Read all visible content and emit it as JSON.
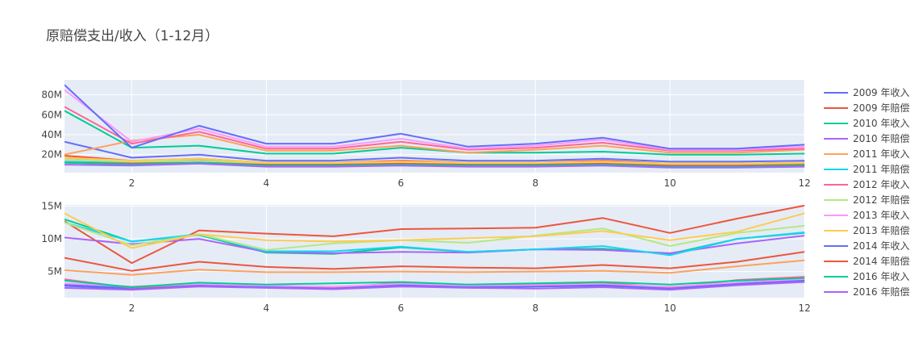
{
  "chart_data": {
    "type": "line",
    "title": "原赔偿支出/收入（1-12月）",
    "x": [
      1,
      2,
      3,
      4,
      5,
      6,
      7,
      8,
      9,
      10,
      11,
      12
    ],
    "x_ticks": [
      2,
      4,
      6,
      8,
      10,
      12
    ],
    "x_range": [
      1,
      12
    ],
    "subplots": [
      {
        "y_range": [
          2,
          95
        ],
        "y_ticks": [
          20,
          40,
          60,
          80
        ],
        "y_tick_labels": [
          "20M",
          "40M",
          "60M",
          "80M"
        ],
        "series": [
          {
            "name": "2009 年收入",
            "color": "#636efa",
            "values": [
              33,
              17,
              20,
              14,
              14,
              17,
              14,
              14,
              16,
              13,
              13,
              14
            ]
          },
          {
            "name": "2009 年赔偿",
            "color": "#EF553B",
            "values": [
              19,
              14,
              16,
              12,
              12,
              14,
              12,
              12,
              14,
              11,
              11,
              12
            ]
          },
          {
            "name": "2010 年收入",
            "color": "#00cc96",
            "values": [
              64,
              27,
              29,
              21,
              21,
              27,
              22,
              22,
              23,
              20,
              20,
              21
            ]
          },
          {
            "name": "2010 年赔偿",
            "color": "#ab63fa",
            "values": [
              17,
              13,
              15,
              11,
              11,
              12,
              11,
              11,
              12,
              10,
              10,
              11
            ]
          },
          {
            "name": "2011 年收入",
            "color": "#FFA15A",
            "values": [
              20,
              34,
              40,
              24,
              24,
              29,
              22,
              25,
              29,
              22,
              22,
              25
            ]
          },
          {
            "name": "2011 年赔偿",
            "color": "#19d3f3",
            "values": [
              13,
              12,
              14,
              10,
              10,
              11,
              10,
              10,
              11,
              9,
              9,
              10
            ]
          },
          {
            "name": "2012 年收入",
            "color": "#FF6692",
            "values": [
              68,
              31,
              43,
              26,
              26,
              33,
              25,
              27,
              32,
              24,
              24,
              26
            ]
          },
          {
            "name": "2012 年赔偿",
            "color": "#B6E880",
            "values": [
              15,
              13,
              14,
              11,
              11,
              12,
              11,
              11,
              12,
              10,
              10,
              11
            ]
          },
          {
            "name": "2013 年收入",
            "color": "#FF97FF",
            "values": [
              85,
              33,
              46,
              28,
              28,
              36,
              26,
              29,
              35,
              25,
              25,
              28
            ]
          },
          {
            "name": "2013 年赔偿",
            "color": "#FECB52",
            "values": [
              17,
              14,
              16,
              12,
              12,
              13,
              12,
              12,
              13,
              11,
              11,
              12
            ]
          },
          {
            "name": "2014 年收入",
            "color": "#636efa",
            "values": [
              90,
              27,
              49,
              31,
              31,
              41,
              28,
              31,
              37,
              26,
              26,
              30
            ]
          },
          {
            "name": "2014 年赔偿",
            "color": "#EF553B",
            "values": [
              12,
              11,
              12,
              10,
              10,
              11,
              10,
              10,
              11,
              9,
              9,
              10
            ]
          },
          {
            "name": "2016 年收入",
            "color": "#00cc96",
            "values": [
              12,
              10,
              12,
              9,
              9,
              10,
              9,
              9,
              10,
              8,
              8,
              9
            ]
          },
          {
            "name": "2016 年赔偿",
            "color": "#ab63fa",
            "values": [
              10,
              9,
              11,
              8,
              8,
              9,
              8,
              8,
              9,
              7,
              7,
              8
            ]
          }
        ]
      },
      {
        "y_range": [
          1,
          15.2
        ],
        "y_ticks": [
          5,
          10,
          15
        ],
        "y_tick_labels": [
          "5M",
          "10M",
          "15M"
        ],
        "series": [
          {
            "name": "2009 年收入",
            "color": "#636efa",
            "values": [
              3.0,
              2.5,
              2.9,
              2.6,
              2.5,
              2.9,
              2.6,
              2.7,
              2.8,
              2.5,
              3.3,
              3.9
            ]
          },
          {
            "name": "2009 年赔偿",
            "color": "#EF553B",
            "values": [
              12.7,
              6.3,
              11.3,
              10.8,
              10.4,
              11.5,
              11.6,
              11.7,
              13.2,
              10.9,
              13.1,
              15.1
            ]
          },
          {
            "name": "2010 年收入",
            "color": "#00cc96",
            "values": [
              13.0,
              9.6,
              10.6,
              7.9,
              7.7,
              8.7,
              8.0,
              8.4,
              8.5,
              7.7,
              10.0,
              10.9
            ]
          },
          {
            "name": "2010 年赔偿",
            "color": "#ab63fa",
            "values": [
              10.2,
              9.2,
              10.0,
              8.0,
              7.8,
              8.0,
              7.9,
              8.4,
              8.3,
              7.8,
              9.3,
              10.5
            ]
          },
          {
            "name": "2011 年收入",
            "color": "#FFA15A",
            "values": [
              5.2,
              4.5,
              5.3,
              4.9,
              4.9,
              5.0,
              4.9,
              5.0,
              5.1,
              4.8,
              5.8,
              6.7
            ]
          },
          {
            "name": "2011 年赔偿",
            "color": "#19d3f3",
            "values": [
              12.5,
              9.6,
              10.7,
              8.1,
              8.1,
              8.8,
              8.0,
              8.4,
              8.9,
              7.5,
              10.0,
              11.0
            ]
          },
          {
            "name": "2012 年收入",
            "color": "#FF6692",
            "values": [
              3.8,
              2.5,
              3.1,
              2.9,
              2.5,
              3.3,
              2.9,
              3.1,
              3.3,
              2.5,
              3.7,
              4.2
            ]
          },
          {
            "name": "2012 年赔偿",
            "color": "#B6E880",
            "values": [
              12.5,
              9.0,
              10.7,
              8.3,
              9.3,
              9.8,
              9.4,
              10.5,
              11.6,
              8.9,
              10.9,
              12.0
            ]
          },
          {
            "name": "2013 年收入",
            "color": "#FF97FF",
            "values": [
              3.2,
              2.7,
              3.1,
              2.8,
              2.7,
              3.1,
              2.8,
              2.9,
              3.0,
              2.7,
              3.3,
              3.8
            ]
          },
          {
            "name": "2013 年赔偿",
            "color": "#FECB52",
            "values": [
              13.9,
              8.6,
              10.7,
              9.8,
              9.6,
              9.8,
              10.1,
              10.4,
              11.2,
              9.8,
              11.1,
              13.9
            ]
          },
          {
            "name": "2014 年收入",
            "color": "#636efa",
            "values": [
              2.8,
              2.3,
              2.8,
              2.6,
              2.4,
              2.9,
              2.6,
              2.7,
              2.9,
              2.4,
              3.1,
              3.6
            ]
          },
          {
            "name": "2014 年赔偿",
            "color": "#EF553B",
            "values": [
              7.1,
              5.1,
              6.5,
              5.7,
              5.4,
              5.8,
              5.6,
              5.5,
              6.0,
              5.5,
              6.5,
              8.0
            ]
          },
          {
            "name": "2016 年收入",
            "color": "#00cc96",
            "values": [
              3.6,
              2.6,
              3.3,
              3.0,
              3.2,
              3.4,
              3.0,
              3.2,
              3.4,
              3.0,
              3.6,
              4.0
            ]
          },
          {
            "name": "2016 年赔偿",
            "color": "#ab63fa",
            "values": [
              2.5,
              2.2,
              2.7,
              2.5,
              2.3,
              2.7,
              2.5,
              2.4,
              2.6,
              2.2,
              2.9,
              3.4
            ]
          }
        ]
      }
    ],
    "legend": {
      "position": "right",
      "entries": [
        {
          "name": "2009 年收入",
          "color": "#636efa"
        },
        {
          "name": "2009 年赔偿",
          "color": "#EF553B"
        },
        {
          "name": "2010 年收入",
          "color": "#00cc96"
        },
        {
          "name": "2010 年赔偿",
          "color": "#ab63fa"
        },
        {
          "name": "2011 年收入",
          "color": "#FFA15A"
        },
        {
          "name": "2011 年赔偿",
          "color": "#19d3f3"
        },
        {
          "name": "2012 年收入",
          "color": "#FF6692"
        },
        {
          "name": "2012 年赔偿",
          "color": "#B6E880"
        },
        {
          "name": "2013 年收入",
          "color": "#FF97FF"
        },
        {
          "name": "2013 年赔偿",
          "color": "#FECB52"
        },
        {
          "name": "2014 年收入",
          "color": "#636efa"
        },
        {
          "name": "2014 年赔偿",
          "color": "#EF553B"
        },
        {
          "name": "2016 年收入",
          "color": "#00cc96"
        },
        {
          "name": "2016 年赔偿",
          "color": "#ab63fa"
        }
      ]
    },
    "plot_bgcolor": "#E5ECF6",
    "grid": true
  }
}
